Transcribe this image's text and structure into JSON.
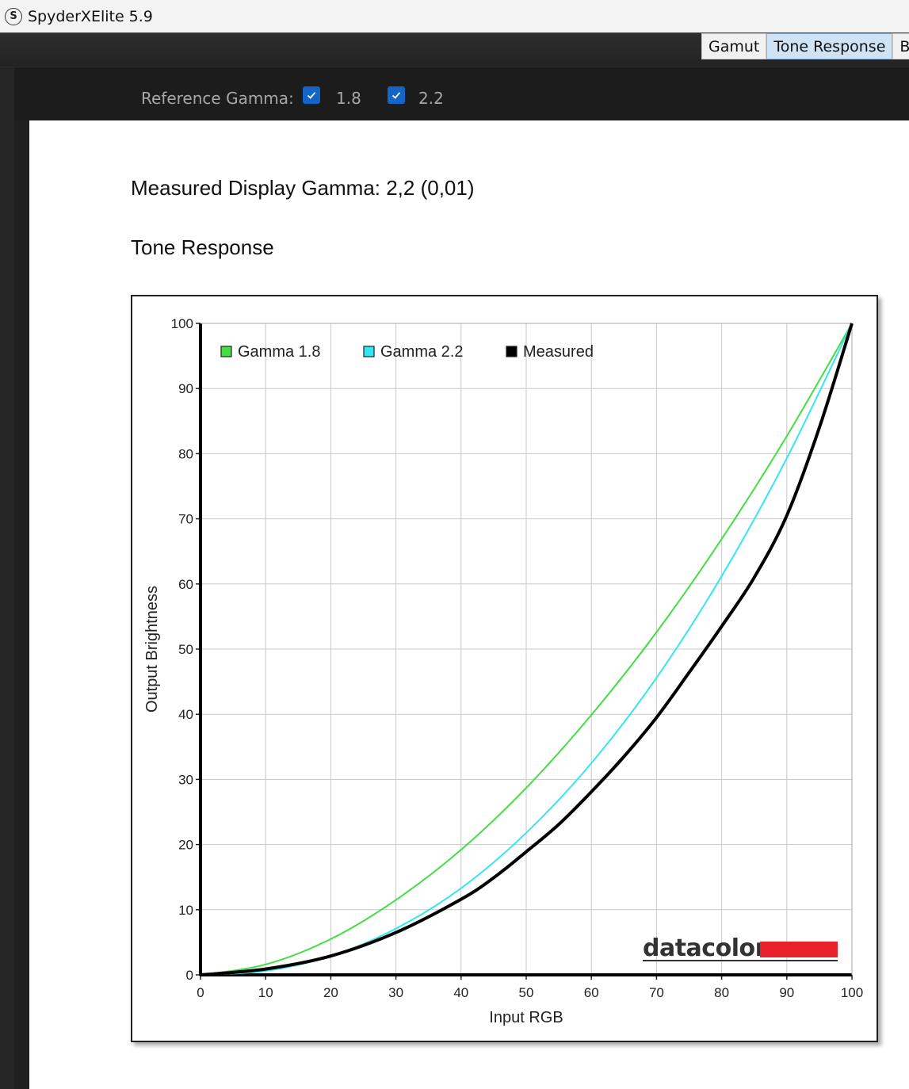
{
  "window": {
    "title": "SpyderXElite 5.9",
    "icon_letter": "S"
  },
  "tabs": [
    {
      "label": "Gamut",
      "active": false
    },
    {
      "label": "Tone Response",
      "active": true
    },
    {
      "label": "Br",
      "active": false
    }
  ],
  "reference_gamma": {
    "label": "Reference Gamma:",
    "options": [
      {
        "label": "1.8",
        "checked": true
      },
      {
        "label": "2.2",
        "checked": true
      }
    ],
    "checkbox_color": "#1565c8"
  },
  "main": {
    "measured_title": "Measured Display Gamma: 2,2 (0,01)",
    "section_title": "Tone Response"
  },
  "chart_data": {
    "type": "line",
    "title": "",
    "xlabel": "Input RGB",
    "ylabel": "Output Brightness",
    "xlim": [
      0,
      100
    ],
    "ylim": [
      0,
      100
    ],
    "xticks": [
      "0",
      "10",
      "20",
      "30",
      "40",
      "50",
      "60",
      "70",
      "80",
      "90",
      "100"
    ],
    "yticks": [
      "0",
      "10",
      "20",
      "30",
      "40",
      "50",
      "60",
      "70",
      "80",
      "90",
      "100"
    ],
    "grid": true,
    "legend_position": "top-left",
    "series": [
      {
        "name": "Gamma 1.8",
        "color": "#44dd44",
        "x": [
          0,
          10,
          20,
          30,
          40,
          50,
          60,
          70,
          80,
          90,
          100
        ],
        "values": [
          0,
          1.6,
          5.5,
          11.5,
          19.2,
          28.7,
          39.9,
          52.6,
          66.9,
          82.7,
          100
        ]
      },
      {
        "name": "Gamma 2.2",
        "color": "#33e6f2",
        "x": [
          0,
          10,
          20,
          30,
          40,
          50,
          60,
          70,
          80,
          90,
          100
        ],
        "values": [
          0,
          0.6,
          2.9,
          7.1,
          13.3,
          21.8,
          32.5,
          45.6,
          61.2,
          79.3,
          100
        ]
      },
      {
        "name": "Measured",
        "color": "#000000",
        "x": [
          0,
          10,
          20,
          30,
          40,
          45,
          50,
          55,
          60,
          65,
          70,
          75,
          80,
          85,
          90,
          95,
          100
        ],
        "values": [
          0,
          0.9,
          2.9,
          6.5,
          11.6,
          14.9,
          18.9,
          23.1,
          28.1,
          33.5,
          39.5,
          46.4,
          53.5,
          61.0,
          70.5,
          84.0,
          100
        ]
      }
    ]
  },
  "logo": {
    "text": "datacolor",
    "bar_color": "#e8202c"
  }
}
